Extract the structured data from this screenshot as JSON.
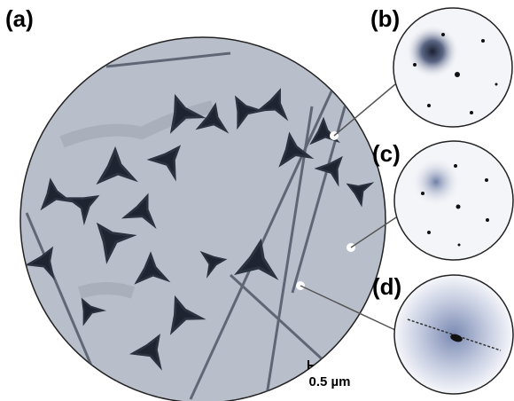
{
  "panels": {
    "a": {
      "label": "(a)",
      "scale_bar": "0.5 µm"
    },
    "b": {
      "label": "(b)"
    },
    "c": {
      "label": "(c)"
    },
    "d": {
      "label": "(d)"
    }
  }
}
